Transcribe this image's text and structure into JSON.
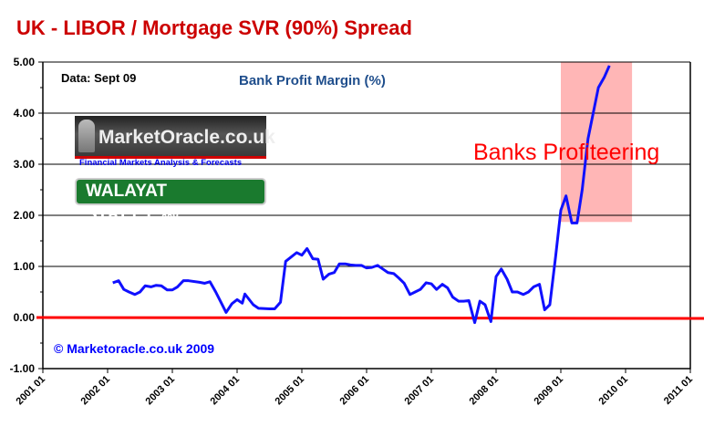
{
  "chart_data": {
    "type": "line",
    "title": "UK  - LIBOR / Mortgage SVR (90%) Spread",
    "subtitle": "Bank Profit Margin (%)",
    "note": "Data: Sept  09",
    "annotation": "Banks Profiteering",
    "copyright": "© Marketoracle.co.uk  2009",
    "logos": {
      "market_oracle": "MarketOracle.co.uk",
      "market_oracle_tagline": "Financial Markets Analysis & Forecasts",
      "walayat": "WALAYAT STREET",
      "walayat_suffix": ".COM"
    },
    "ylim": [
      -1,
      5
    ],
    "y_ticks": [
      "5.00",
      "4.00",
      "3.00",
      "2.00",
      "1.00",
      "0.00",
      "-1.00"
    ],
    "y_tick_values": [
      5,
      4,
      3,
      2,
      1,
      0,
      -1
    ],
    "x_ticks": [
      "2001 01",
      "2002 01",
      "2003 01",
      "2004 01",
      "2005 01",
      "2006 01",
      "2007 01",
      "2008 01",
      "2009 01",
      "2010 01",
      "2011 01"
    ],
    "xlim": [
      2001,
      2011
    ],
    "grid": true,
    "highlight": {
      "x": [
        2009.0,
        2010.1
      ],
      "y": [
        1.87,
        5.0
      ],
      "color": "#ffb6b6"
    },
    "zero_line_color": "#ff0000",
    "series_color": "#1010ff",
    "series": [
      {
        "x": [
          2002.08,
          2002.17,
          2002.25,
          2002.33,
          2002.42,
          2002.5,
          2002.58,
          2002.67,
          2002.75,
          2002.83,
          2002.92,
          2003.0,
          2003.08,
          2003.17,
          2003.25,
          2003.42,
          2003.5,
          2003.58,
          2003.67,
          2003.75,
          2003.83,
          2003.92,
          2004.0,
          2004.08,
          2004.12,
          2004.25,
          2004.33,
          2004.5,
          2004.58,
          2004.67,
          2004.75,
          2004.83,
          2004.92,
          2005.0,
          2005.08,
          2005.17,
          2005.25,
          2005.33,
          2005.42,
          2005.5,
          2005.58,
          2005.67,
          2005.75,
          2005.83,
          2005.92,
          2006.0,
          2006.08,
          2006.17,
          2006.25,
          2006.33,
          2006.42,
          2006.5,
          2006.58,
          2006.67,
          2006.75,
          2006.83,
          2006.92,
          2007.0,
          2007.08,
          2007.17,
          2007.25,
          2007.33,
          2007.42,
          2007.5,
          2007.58,
          2007.67,
          2007.75,
          2007.83,
          2007.92,
          2008.0,
          2008.08,
          2008.17,
          2008.25,
          2008.33,
          2008.42,
          2008.5,
          2008.58,
          2008.67,
          2008.75,
          2008.83,
          2008.92,
          2009.0,
          2009.08,
          2009.17,
          2009.25,
          2009.33,
          2009.42,
          2009.5,
          2009.58,
          2009.67,
          2009.75
        ],
        "values": [
          0.68,
          0.72,
          0.55,
          0.5,
          0.45,
          0.5,
          0.62,
          0.6,
          0.63,
          0.62,
          0.54,
          0.54,
          0.6,
          0.72,
          0.72,
          0.69,
          0.67,
          0.7,
          0.5,
          0.3,
          0.1,
          0.27,
          0.35,
          0.28,
          0.46,
          0.25,
          0.18,
          0.17,
          0.17,
          0.3,
          1.1,
          1.18,
          1.27,
          1.22,
          1.35,
          1.15,
          1.14,
          0.75,
          0.85,
          0.88,
          1.05,
          1.05,
          1.03,
          1.02,
          1.02,
          0.97,
          0.98,
          1.02,
          0.95,
          0.88,
          0.86,
          0.77,
          0.67,
          0.45,
          0.5,
          0.55,
          0.68,
          0.66,
          0.55,
          0.65,
          0.58,
          0.4,
          0.32,
          0.32,
          0.33,
          -0.1,
          0.32,
          0.25,
          -0.08,
          0.8,
          0.95,
          0.75,
          0.5,
          0.5,
          0.45,
          0.5,
          0.6,
          0.65,
          0.15,
          0.25,
          1.2,
          2.1,
          2.38,
          1.85,
          1.85,
          2.5,
          3.5,
          4.0,
          4.5,
          4.7,
          4.93
        ]
      }
    ]
  }
}
